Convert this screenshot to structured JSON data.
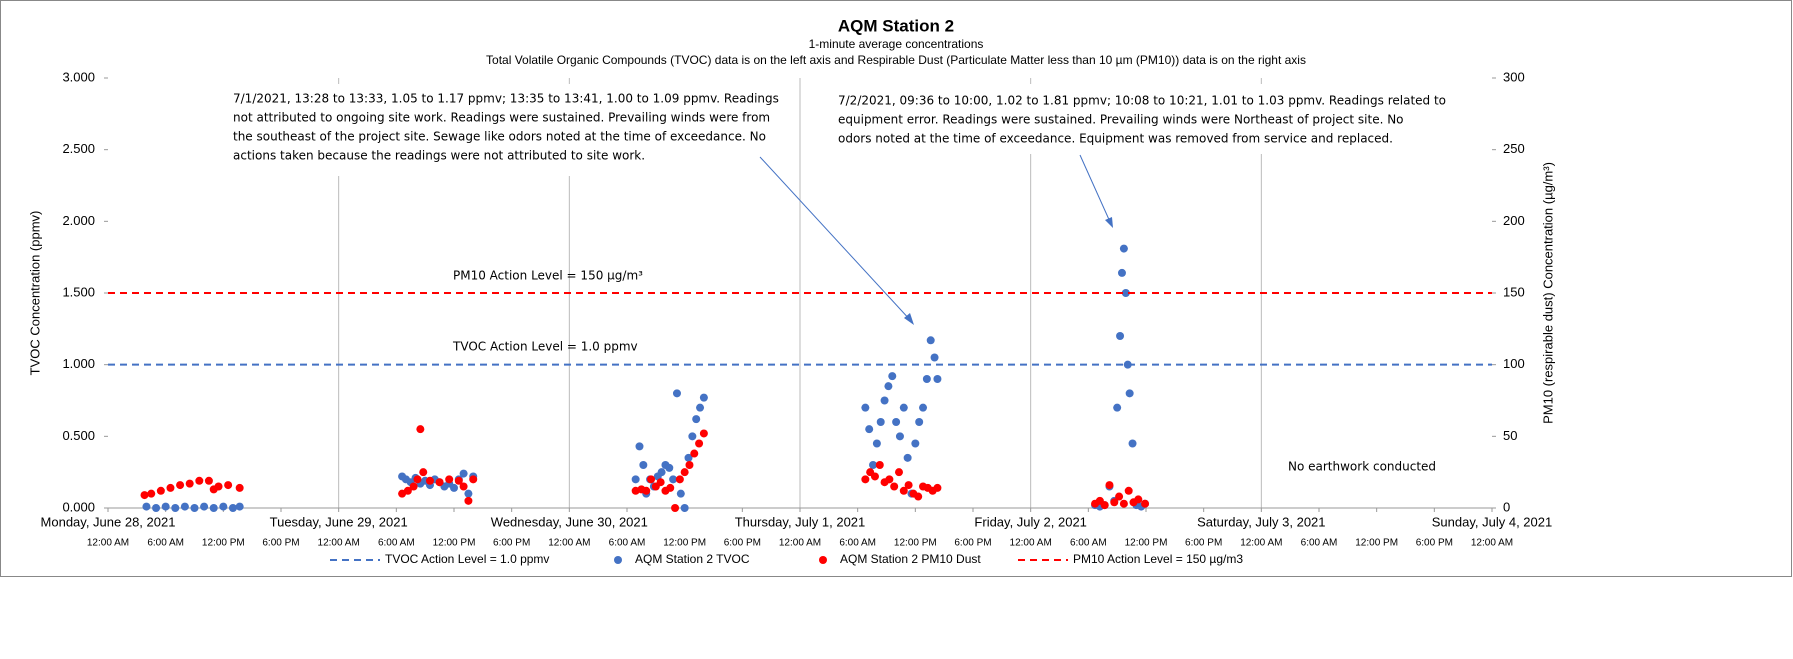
{
  "chart_data": {
    "type": "scatter",
    "title": "AQM Station 2",
    "subtitle": "1-minute average concentrations",
    "subtitle2": "Total Volatile Organic Compounds (TVOC) data is on the left axis and Respirable Dust (Particulate Matter less than 10 µm (PM10)) data is on the right axis",
    "y_label": "TVOC Concentration (ppmv)",
    "y2_label": "PM10 (respirable dust) Concentration (µg/m³)",
    "xlim": [
      0,
      144
    ],
    "xticks": [
      {
        "value": 0,
        "label": "12:00 AM"
      },
      {
        "value": 6,
        "label": "6:00 AM"
      },
      {
        "value": 12,
        "label": "12:00 PM"
      },
      {
        "value": 18,
        "label": "6:00 PM"
      },
      {
        "value": 24,
        "label": "12:00 AM"
      },
      {
        "value": 30,
        "label": "6:00 AM"
      },
      {
        "value": 36,
        "label": "12:00 PM"
      },
      {
        "value": 42,
        "label": "6:00 PM"
      },
      {
        "value": 48,
        "label": "12:00 AM"
      },
      {
        "value": 54,
        "label": "6:00 AM"
      },
      {
        "value": 60,
        "label": "12:00 PM"
      },
      {
        "value": 66,
        "label": "6:00 PM"
      },
      {
        "value": 72,
        "label": "12:00 AM"
      },
      {
        "value": 78,
        "label": "6:00 AM"
      },
      {
        "value": 84,
        "label": "12:00 PM"
      },
      {
        "value": 90,
        "label": "6:00 PM"
      },
      {
        "value": 96,
        "label": "12:00 AM"
      },
      {
        "value": 102,
        "label": "6:00 AM"
      },
      {
        "value": 108,
        "label": "12:00 PM"
      },
      {
        "value": 114,
        "label": "6:00 PM"
      },
      {
        "value": 120,
        "label": "12:00 AM"
      },
      {
        "value": 126,
        "label": "6:00 AM"
      },
      {
        "value": 132,
        "label": "12:00 PM"
      },
      {
        "value": 138,
        "label": "6:00 PM"
      },
      {
        "value": 144,
        "label": "12:00 AM"
      }
    ],
    "x_day_labels": [
      {
        "value": 0,
        "label": "Monday, June 28, 2021"
      },
      {
        "value": 24,
        "label": "Tuesday, June 29, 2021"
      },
      {
        "value": 48,
        "label": "Wednesday, June 30, 2021"
      },
      {
        "value": 72,
        "label": "Thursday, July 1, 2021"
      },
      {
        "value": 96,
        "label": "Friday, July 2, 2021"
      },
      {
        "value": 120,
        "label": "Saturday, July 3, 2021"
      },
      {
        "value": 144,
        "label": "Sunday, July 4, 2021"
      }
    ],
    "ylim": [
      0,
      3
    ],
    "yticks": [
      {
        "value": 0,
        "label": "0.000"
      },
      {
        "value": 0.5,
        "label": "0.500"
      },
      {
        "value": 1,
        "label": "1.000"
      },
      {
        "value": 1.5,
        "label": "1.500"
      },
      {
        "value": 2,
        "label": "2.000"
      },
      {
        "value": 2.5,
        "label": "2.500"
      },
      {
        "value": 3,
        "label": "3.000"
      }
    ],
    "y2lim": [
      0,
      300
    ],
    "y2ticks": [
      0,
      50,
      100,
      150,
      200,
      250,
      300
    ],
    "series": [
      {
        "name": "TVOC Action Level = 1.0 ppmv",
        "style": "dashed",
        "color": "#4472c4",
        "x": [
          0,
          144
        ],
        "values": [
          1.0,
          1.0
        ]
      },
      {
        "name": "AQM Station 2 TVOC",
        "style": "markers",
        "color": "#4472c4",
        "x": [
          4,
          5,
          6,
          7,
          8,
          9,
          10,
          11,
          12,
          13,
          13.7,
          30.6,
          31,
          31.5,
          32,
          32.5,
          33,
          33.5,
          34,
          34.5,
          35,
          35.5,
          36,
          36.5,
          37,
          37.5,
          38,
          54.9,
          55.3,
          55.7,
          56,
          56.4,
          56.8,
          57.2,
          57.6,
          58,
          58.4,
          58.8,
          59.2,
          59.6,
          60,
          60.4,
          60.8,
          61.2,
          61.6,
          62,
          78.8,
          79.2,
          79.6,
          80,
          80.4,
          80.8,
          81.2,
          81.6,
          82,
          82.4,
          82.8,
          83.2,
          83.6,
          84,
          84.4,
          84.8,
          85.2,
          85.6,
          86,
          86.3,
          102.7,
          103.2,
          103.7,
          104.2,
          104.7,
          105,
          105.3,
          105.5,
          105.7,
          105.9,
          106.1,
          106.3,
          106.6,
          107,
          107.5,
          107.9
        ],
        "values": [
          0.01,
          0,
          0.01,
          0,
          0.01,
          0,
          0.01,
          0,
          0.01,
          0,
          0.01,
          0.22,
          0.2,
          0.18,
          0.21,
          0.17,
          0.19,
          0.16,
          0.2,
          0.18,
          0.15,
          0.17,
          0.14,
          0.2,
          0.24,
          0.1,
          0.22,
          0.2,
          0.43,
          0.3,
          0.1,
          0.2,
          0.15,
          0.22,
          0.25,
          0.3,
          0.28,
          0.2,
          0.8,
          0.1,
          0,
          0.35,
          0.5,
          0.62,
          0.7,
          0.77,
          0.7,
          0.55,
          0.3,
          0.45,
          0.6,
          0.75,
          0.85,
          0.92,
          0.6,
          0.5,
          0.7,
          0.35,
          0.1,
          0.45,
          0.6,
          0.7,
          0.9,
          1.17,
          1.05,
          0.9,
          0.02,
          0.01,
          0.02,
          0.15,
          0.05,
          0.7,
          1.2,
          1.64,
          1.81,
          1.5,
          1.0,
          0.8,
          0.45,
          0.02,
          0.01,
          0.03
        ]
      },
      {
        "name": "AQM Station 2 PM10 Dust",
        "style": "markers",
        "color": "#ff0000",
        "axis": "y2",
        "x": [
          3.8,
          4.5,
          5.5,
          6.5,
          7.5,
          8.5,
          9.5,
          10.5,
          11,
          11.5,
          12.5,
          13.7,
          30.6,
          31.2,
          31.8,
          32.2,
          32.5,
          32.8,
          33.5,
          34.5,
          35.5,
          36.5,
          37,
          37.5,
          38,
          54.9,
          55.5,
          56,
          56.5,
          57,
          57.5,
          58,
          58.5,
          59,
          59.5,
          60,
          60.5,
          61,
          61.5,
          62,
          78.8,
          79.3,
          79.8,
          80.3,
          80.8,
          81.3,
          81.8,
          82.3,
          82.8,
          83.3,
          83.8,
          84.3,
          84.8,
          85.3,
          85.8,
          86.3,
          102.7,
          103.2,
          103.7,
          104.2,
          104.7,
          105.2,
          105.7,
          106.2,
          106.7,
          107.2,
          107.9
        ],
        "values": [
          9,
          10,
          12,
          14,
          16,
          17,
          19,
          19,
          13,
          15,
          16,
          14,
          10,
          12,
          15,
          20,
          55,
          25,
          19,
          18,
          20,
          19,
          15,
          5,
          20,
          12,
          13,
          12,
          20,
          15,
          18,
          12,
          14,
          0,
          20,
          25,
          30,
          38,
          45,
          52,
          20,
          25,
          22,
          30,
          18,
          20,
          15,
          25,
          12,
          16,
          10,
          8,
          15,
          14,
          12,
          14,
          3,
          5,
          2,
          16,
          4,
          8,
          3,
          12,
          4,
          6,
          3
        ]
      },
      {
        "name": "PM10 Action Level = 150 µg/m3",
        "style": "dashed",
        "color": "#ff0000",
        "axis": "y2",
        "x": [
          0,
          144
        ],
        "values": [
          150,
          150
        ]
      }
    ],
    "annotations": [
      {
        "text": "PM10 Action Level = 150 µg/m³"
      },
      {
        "text": "TVOC Action Level = 1.0 ppmv"
      },
      {
        "lines": [
          "7/1/2021, 13:28 to 13:33, 1.05 to 1.17 ppmv; 13:35 to 13:41, 1.00 to 1.09 ppmv. Readings",
          "not attributed to ongoing site work. Readings were sustained. Prevailing winds were from",
          "the southeast of the project site. Sewage like odors noted at the time of exceedance. No",
          "actions taken because the readings were not attributed to site work."
        ]
      },
      {
        "lines": [
          "7/2/2021, 09:36 to 10:00, 1.02 to 1.81 ppmv; 10:08 to 10:21, 1.01 to 1.03 ppmv. Readings related to",
          "equipment error. Readings were sustained. Prevailing winds were Northeast of project site. No",
          "odors noted at the time of exceedance. Equipment was removed from service and replaced."
        ]
      },
      {
        "text": "No earthwork conducted"
      }
    ]
  }
}
